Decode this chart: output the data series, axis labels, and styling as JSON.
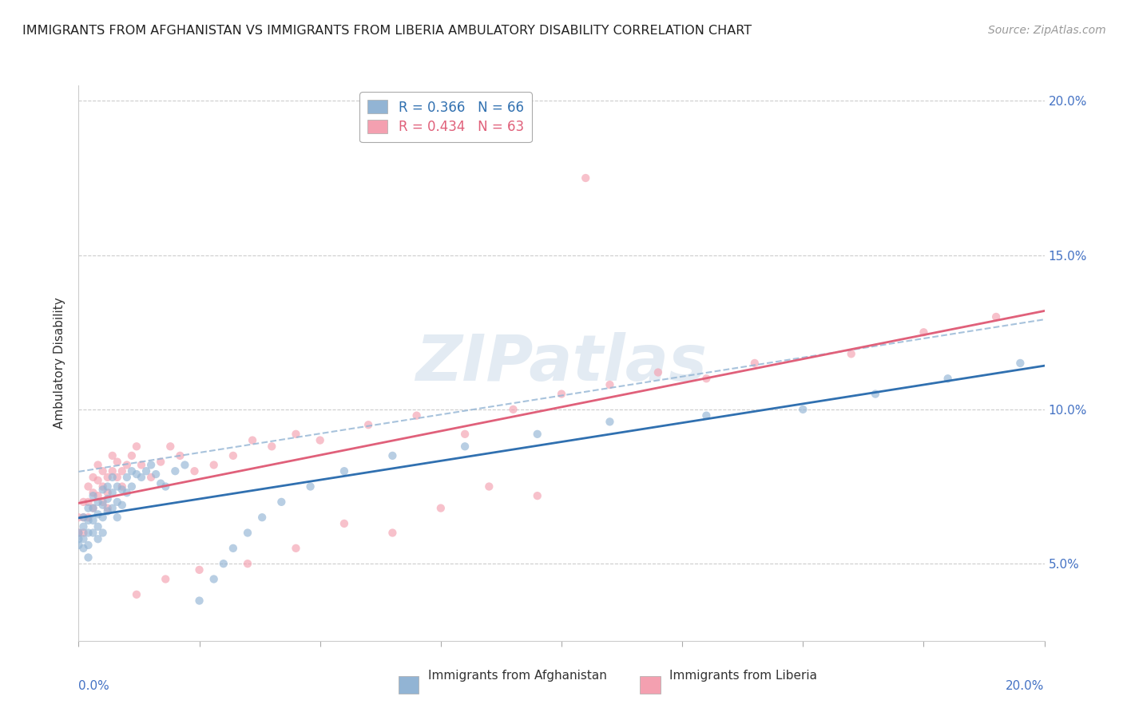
{
  "title": "IMMIGRANTS FROM AFGHANISTAN VS IMMIGRANTS FROM LIBERIA AMBULATORY DISABILITY CORRELATION CHART",
  "source": "Source: ZipAtlas.com",
  "ylabel": "Ambulatory Disability",
  "legend_1_label": "R = 0.366   N = 66",
  "legend_2_label": "R = 0.434   N = 63",
  "afghanistan_color": "#92b4d4",
  "liberia_color": "#f4a0b0",
  "afghanistan_line_color": "#3070b0",
  "liberia_line_color": "#e0607a",
  "watermark": "ZIPatlas",
  "xmin": 0.0,
  "xmax": 0.2,
  "ymin": 0.025,
  "ymax": 0.205,
  "yticks": [
    0.05,
    0.1,
    0.15,
    0.2
  ],
  "ytick_labels": [
    "5.0%",
    "10.0%",
    "15.0%",
    "20.0%"
  ],
  "xtick_labels_ends": [
    "0.0%",
    "20.0%"
  ],
  "afghanistan_scatter_x": [
    0.0,
    0.0,
    0.0,
    0.001,
    0.001,
    0.001,
    0.001,
    0.002,
    0.002,
    0.002,
    0.002,
    0.002,
    0.003,
    0.003,
    0.003,
    0.003,
    0.004,
    0.004,
    0.004,
    0.004,
    0.005,
    0.005,
    0.005,
    0.005,
    0.006,
    0.006,
    0.006,
    0.007,
    0.007,
    0.007,
    0.008,
    0.008,
    0.008,
    0.009,
    0.009,
    0.01,
    0.01,
    0.011,
    0.011,
    0.012,
    0.013,
    0.014,
    0.015,
    0.016,
    0.017,
    0.018,
    0.02,
    0.022,
    0.025,
    0.028,
    0.03,
    0.032,
    0.035,
    0.038,
    0.042,
    0.048,
    0.055,
    0.065,
    0.08,
    0.095,
    0.11,
    0.13,
    0.15,
    0.165,
    0.18,
    0.195
  ],
  "afghanistan_scatter_y": [
    0.06,
    0.058,
    0.056,
    0.065,
    0.062,
    0.058,
    0.055,
    0.068,
    0.064,
    0.06,
    0.056,
    0.052,
    0.072,
    0.068,
    0.064,
    0.06,
    0.07,
    0.066,
    0.062,
    0.058,
    0.074,
    0.069,
    0.065,
    0.06,
    0.075,
    0.071,
    0.067,
    0.078,
    0.073,
    0.068,
    0.075,
    0.07,
    0.065,
    0.074,
    0.069,
    0.078,
    0.073,
    0.08,
    0.075,
    0.079,
    0.078,
    0.08,
    0.082,
    0.079,
    0.076,
    0.075,
    0.08,
    0.082,
    0.038,
    0.045,
    0.05,
    0.055,
    0.06,
    0.065,
    0.07,
    0.075,
    0.08,
    0.085,
    0.088,
    0.092,
    0.096,
    0.098,
    0.1,
    0.105,
    0.11,
    0.115
  ],
  "liberia_scatter_x": [
    0.0,
    0.0,
    0.001,
    0.001,
    0.001,
    0.002,
    0.002,
    0.002,
    0.003,
    0.003,
    0.003,
    0.004,
    0.004,
    0.004,
    0.005,
    0.005,
    0.005,
    0.006,
    0.006,
    0.006,
    0.007,
    0.007,
    0.008,
    0.008,
    0.009,
    0.009,
    0.01,
    0.011,
    0.012,
    0.013,
    0.015,
    0.017,
    0.019,
    0.021,
    0.024,
    0.028,
    0.032,
    0.036,
    0.04,
    0.045,
    0.05,
    0.06,
    0.07,
    0.08,
    0.09,
    0.1,
    0.12,
    0.14,
    0.16,
    0.175,
    0.19,
    0.095,
    0.075,
    0.055,
    0.11,
    0.13,
    0.085,
    0.065,
    0.045,
    0.035,
    0.025,
    0.018,
    0.012
  ],
  "liberia_scatter_y": [
    0.065,
    0.06,
    0.07,
    0.065,
    0.06,
    0.075,
    0.07,
    0.065,
    0.078,
    0.073,
    0.068,
    0.082,
    0.077,
    0.072,
    0.08,
    0.075,
    0.07,
    0.078,
    0.073,
    0.068,
    0.085,
    0.08,
    0.083,
    0.078,
    0.08,
    0.075,
    0.082,
    0.085,
    0.088,
    0.082,
    0.078,
    0.083,
    0.088,
    0.085,
    0.08,
    0.082,
    0.085,
    0.09,
    0.088,
    0.092,
    0.09,
    0.095,
    0.098,
    0.092,
    0.1,
    0.105,
    0.112,
    0.115,
    0.118,
    0.125,
    0.13,
    0.072,
    0.068,
    0.063,
    0.108,
    0.11,
    0.075,
    0.06,
    0.055,
    0.05,
    0.048,
    0.045,
    0.04
  ],
  "liberia_outlier_x": [
    0.105
  ],
  "liberia_outlier_y": [
    0.175
  ]
}
